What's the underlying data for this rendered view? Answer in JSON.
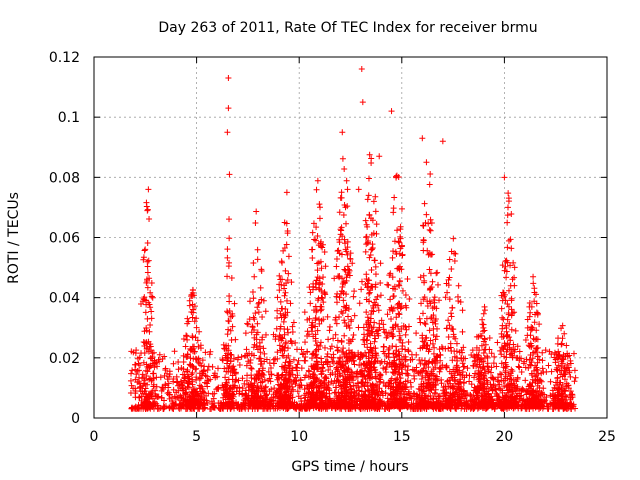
{
  "chart_data": {
    "type": "scatter",
    "title": "Day 263 of 2011, Rate Of TEC Index for receiver brmu",
    "xlabel": "GPS time / hours",
    "ylabel": "ROTI / TECUs",
    "xlim": [
      0,
      25
    ],
    "ylim": [
      0,
      0.12
    ],
    "x_ticks": [
      "0",
      "5",
      "10",
      "15",
      "20",
      "25"
    ],
    "y_ticks": [
      "0",
      "0.02",
      "0.04",
      "0.06",
      "0.08",
      "0.1",
      "0.12"
    ],
    "grid": true,
    "legend": "none",
    "marker": "plus",
    "color": "#ff0000",
    "x_coverage": [
      1.8,
      23.5
    ],
    "notable_points": [
      {
        "x": 13.05,
        "y": 0.116
      },
      {
        "x": 6.55,
        "y": 0.113
      },
      {
        "x": 6.55,
        "y": 0.103
      },
      {
        "x": 13.1,
        "y": 0.105
      },
      {
        "x": 14.5,
        "y": 0.102
      },
      {
        "x": 6.5,
        "y": 0.095
      },
      {
        "x": 12.1,
        "y": 0.095
      },
      {
        "x": 16.0,
        "y": 0.093
      },
      {
        "x": 17.0,
        "y": 0.092
      },
      {
        "x": 13.9,
        "y": 0.087
      },
      {
        "x": 16.2,
        "y": 0.085
      },
      {
        "x": 6.6,
        "y": 0.081
      },
      {
        "x": 20.0,
        "y": 0.08
      },
      {
        "x": 12.9,
        "y": 0.076
      },
      {
        "x": 2.65,
        "y": 0.076
      },
      {
        "x": 9.4,
        "y": 0.075
      }
    ],
    "clusters": [
      {
        "center": 2.6,
        "width": 0.35,
        "peak": 0.075,
        "count": 150
      },
      {
        "center": 4.8,
        "width": 0.7,
        "peak": 0.04,
        "count": 230
      },
      {
        "center": 6.6,
        "width": 0.35,
        "peak": 0.065,
        "count": 140
      },
      {
        "center": 7.9,
        "width": 0.55,
        "peak": 0.065,
        "count": 200
      },
      {
        "center": 9.3,
        "width": 0.55,
        "peak": 0.07,
        "count": 260
      },
      {
        "center": 10.9,
        "width": 0.65,
        "peak": 0.078,
        "count": 330
      },
      {
        "center": 12.2,
        "width": 0.6,
        "peak": 0.09,
        "count": 360
      },
      {
        "center": 13.5,
        "width": 0.6,
        "peak": 0.09,
        "count": 340
      },
      {
        "center": 14.8,
        "width": 0.6,
        "peak": 0.085,
        "count": 300
      },
      {
        "center": 16.3,
        "width": 0.55,
        "peak": 0.085,
        "count": 260
      },
      {
        "center": 17.5,
        "width": 0.6,
        "peak": 0.06,
        "count": 220
      },
      {
        "center": 19.0,
        "width": 0.6,
        "peak": 0.035,
        "count": 200
      },
      {
        "center": 20.2,
        "width": 0.45,
        "peak": 0.078,
        "count": 240
      },
      {
        "center": 21.4,
        "width": 0.5,
        "peak": 0.045,
        "count": 180
      },
      {
        "center": 22.8,
        "width": 0.5,
        "peak": 0.03,
        "count": 150
      }
    ]
  }
}
